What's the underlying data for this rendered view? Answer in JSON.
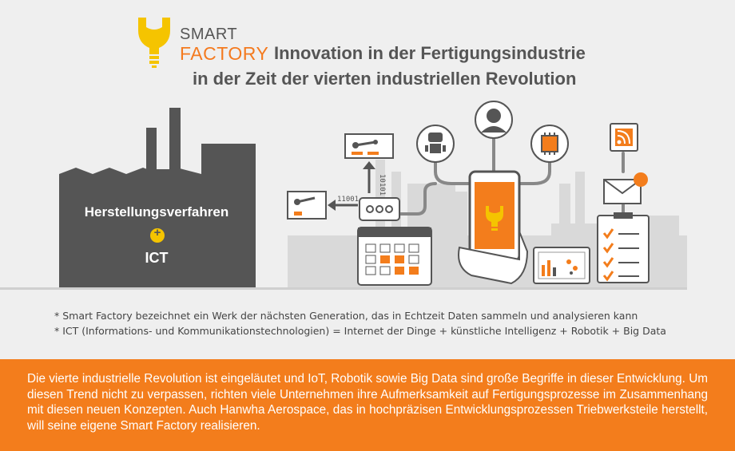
{
  "logo": {
    "smart": "SMART",
    "factory": "FACTORY",
    "icon": "wrench-bulb-icon"
  },
  "title": {
    "line1": "Innovation in der Fertigungsindustrie",
    "line2": "in der Zeit der vierten industriellen Revolution"
  },
  "factory": {
    "label_top": "Herstellungsverfahren",
    "plus": "+",
    "label_bottom": "ICT"
  },
  "diagram": {
    "binary_left": "11001",
    "binary_vertical": "10101",
    "icons": [
      "robot-arm-icon",
      "robot-arm-icon",
      "chat-bubble-icon",
      "calendar-icon",
      "robot-icon",
      "person-icon",
      "chip-icon",
      "rss-icon",
      "envelope-icon",
      "smartphone-icon",
      "tablet-chart-icon",
      "checklist-icon"
    ]
  },
  "notes": [
    "* Smart Factory bezeichnet ein Werk der nächsten Generation, das in Echtzeit Daten sammeln und analysieren kann",
    "* ICT (Informations- und Kommunikationstechnologien) = Internet der Dinge + künstliche Intelligenz + Robotik + Big Data"
  ],
  "banner": {
    "text": "Die vierte industrielle Revolution ist eingeläutet und IoT, Robotik sowie Big Data sind große Begriffe in dieser Entwicklung. Um diesen Trend nicht zu verpassen, richten viele Unternehmen ihre Aufmerksamkeit auf Fertigungsprozesse im Zusammenhang mit diesen neuen Konzepten. Auch Hanwha Aerospace, das in hochpräzisen Entwicklungsprozessen Triebwerksteile herstellt, will seine eigene Smart Factory realisieren."
  },
  "colors": {
    "accent": "#f37d1c",
    "factory": "#555555",
    "text": "#555555",
    "background": "#efefef",
    "yellow": "#f5c400"
  }
}
